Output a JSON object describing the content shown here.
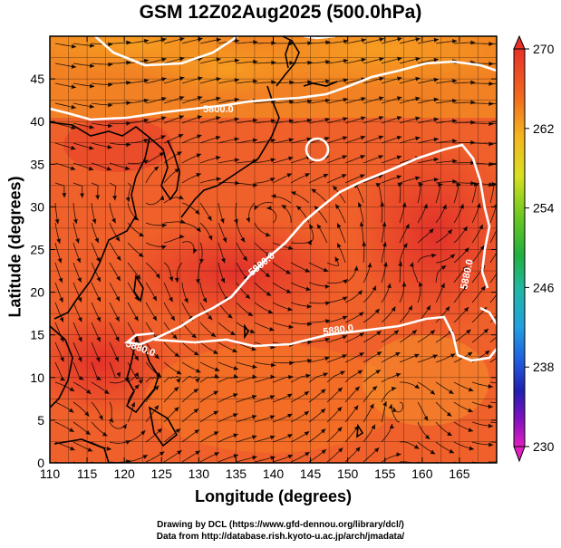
{
  "title": "GSM 12Z02Aug2025 (500.0hPa)",
  "x_axis": {
    "label": "Longitude (degrees)",
    "range": [
      110,
      170
    ],
    "ticks": [
      "110",
      "115",
      "120",
      "125",
      "130",
      "135",
      "140",
      "145",
      "150",
      "155",
      "160",
      "165"
    ]
  },
  "y_axis": {
    "label": "Latitude  (degrees)",
    "range": [
      0,
      50
    ],
    "ticks": [
      "0",
      "5",
      "10",
      "15",
      "20",
      "25",
      "30",
      "35",
      "40",
      "45"
    ]
  },
  "colorbar": {
    "range": [
      230,
      270
    ],
    "labels": [
      "270",
      "262",
      "254",
      "246",
      "238",
      "230"
    ]
  },
  "contours": [
    {
      "label": "5800.0"
    },
    {
      "label": "5880.0"
    },
    {
      "label": "5880.0"
    },
    {
      "label": "5880.0"
    },
    {
      "label": "5880.0"
    }
  ],
  "credits": {
    "line1": "Drawing by DCL (https://www.gfd-dennou.org/library/dcl/)",
    "line2": "Data from http://database.rish.kyoto-u.ac.jp/arch/jmadata/"
  },
  "colors": {
    "field_low": "#e8402a",
    "field_mid": "#f26a1e",
    "field_high": "#f5b520",
    "contour": "#ffffff",
    "coast": "#000000"
  }
}
